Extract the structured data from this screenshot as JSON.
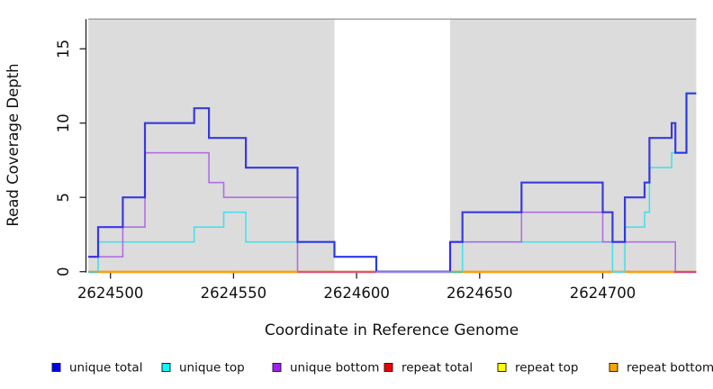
{
  "chart_data": {
    "type": "line",
    "subtype": "step-coverage-plot",
    "title": "",
    "xlabel": "Coordinate in Reference Genome",
    "ylabel": "Read Coverage Depth",
    "xlim": [
      2624491,
      2624738
    ],
    "ylim": [
      0,
      17
    ],
    "grid": false,
    "x_ticks": [
      2624500,
      2624550,
      2624600,
      2624650,
      2624700
    ],
    "y_ticks": [
      0,
      5,
      10,
      15
    ],
    "shade_color": "#dcdcdc",
    "top_border_color": "#9a9a9a",
    "axis_color": "#222222",
    "shaded_regions": [
      [
        2624491,
        2624591
      ],
      [
        2624638,
        2624738
      ]
    ],
    "series": [
      {
        "name": "repeat total",
        "color": "#ee0000",
        "width": 1.6,
        "opacity": 1,
        "steps": [
          [
            2624491,
            0
          ]
        ]
      },
      {
        "name": "repeat top",
        "color": "#ffff00",
        "width": 1.6,
        "opacity": 1,
        "steps": [
          [
            2624491,
            0
          ]
        ]
      },
      {
        "name": "repeat bottom",
        "color": "#ff9d0c",
        "width": 2.0,
        "opacity": 1,
        "steps": [
          [
            2624491,
            0
          ]
        ]
      },
      {
        "name": "unique top",
        "color": "#3fdfea",
        "width": 1.6,
        "opacity": 0.95,
        "steps": [
          [
            2624491,
            0
          ],
          [
            2624495,
            2
          ],
          [
            2624534,
            3
          ],
          [
            2624546,
            4
          ],
          [
            2624555,
            2
          ],
          [
            2624591,
            1
          ],
          [
            2624608,
            0
          ],
          [
            2624643,
            2
          ],
          [
            2624704,
            0
          ],
          [
            2624709,
            3
          ],
          [
            2624717,
            4
          ],
          [
            2624719,
            7
          ],
          [
            2624728,
            8
          ],
          [
            2624734,
            12
          ]
        ]
      },
      {
        "name": "unique bottom",
        "color": "#ad62e6",
        "width": 1.6,
        "opacity": 0.9,
        "steps": [
          [
            2624491,
            1
          ],
          [
            2624505,
            3
          ],
          [
            2624514,
            8
          ],
          [
            2624540,
            6
          ],
          [
            2624546,
            5
          ],
          [
            2624576,
            0
          ],
          [
            2624638,
            2
          ],
          [
            2624667,
            4
          ],
          [
            2624700,
            2
          ],
          [
            2624729.5,
            0
          ]
        ]
      },
      {
        "name": "unique total",
        "color": "#2222e0",
        "width": 2.2,
        "opacity": 0.88,
        "steps": [
          [
            2624491,
            1
          ],
          [
            2624495,
            3
          ],
          [
            2624505,
            5
          ],
          [
            2624514,
            10
          ],
          [
            2624534,
            11
          ],
          [
            2624540,
            9
          ],
          [
            2624555,
            7
          ],
          [
            2624576,
            2
          ],
          [
            2624591,
            1
          ],
          [
            2624608,
            0
          ],
          [
            2624638,
            2
          ],
          [
            2624643,
            4
          ],
          [
            2624667,
            6
          ],
          [
            2624700,
            4
          ],
          [
            2624704,
            2
          ],
          [
            2624709,
            5
          ],
          [
            2624717,
            6
          ],
          [
            2624719,
            9
          ],
          [
            2624728,
            10
          ],
          [
            2624729.5,
            8
          ],
          [
            2624734,
            12
          ]
        ]
      }
    ],
    "baseline_segments": [
      {
        "from": 2624491,
        "to": 2624495,
        "color": "#66c09a"
      },
      {
        "from": 2624495,
        "to": 2624576,
        "color": "#ff9d0c"
      },
      {
        "from": 2624576,
        "to": 2624608,
        "color": "#e15572"
      },
      {
        "from": 2624608,
        "to": 2624638,
        "color": "#9c8cfa"
      },
      {
        "from": 2624638,
        "to": 2624643,
        "color": "#5abf8a"
      },
      {
        "from": 2624643,
        "to": 2624704,
        "color": "#ff9d0c"
      },
      {
        "from": 2624704,
        "to": 2624709,
        "color": "#62d8dc"
      },
      {
        "from": 2624709,
        "to": 2624729,
        "color": "#ff9d0c"
      },
      {
        "from": 2624729,
        "to": 2624738,
        "color": "#d8447e"
      }
    ],
    "legend": [
      {
        "label": "unique total",
        "fill": "#0000ee"
      },
      {
        "label": "unique top",
        "fill": "#00ffff"
      },
      {
        "label": "unique bottom",
        "fill": "#a020f0"
      },
      {
        "label": "repeat total",
        "fill": "#ee0000"
      },
      {
        "label": "repeat top",
        "fill": "#ffff00"
      },
      {
        "label": "repeat bottom",
        "fill": "#ffa500"
      }
    ],
    "legend_position": "bottom"
  }
}
